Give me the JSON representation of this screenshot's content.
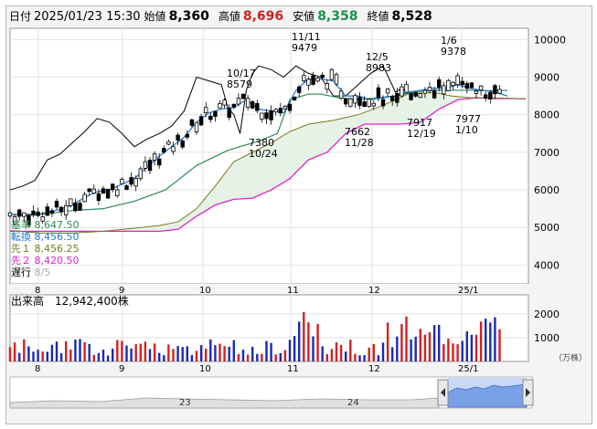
{
  "header": {
    "date_label": "日付",
    "datetime": "2025/01/23 15:30",
    "open_label": "始値",
    "open_value": "8,360",
    "high_label": "高値",
    "high_value": "8,696",
    "low_label": "安値",
    "low_value": "8,358",
    "close_label": "終値",
    "close_value": "8,528"
  },
  "colors": {
    "up": "#d42020",
    "down": "#1a2bb0",
    "high": "#d42020",
    "low": "#18924a",
    "kijun": "#2e8b57",
    "tenkan": "#1e78d8",
    "senkou1": "#7a7a20",
    "senkou2": "#e020d0",
    "chikou": "#000000",
    "cloud": "#e6f2e6"
  },
  "legend": [
    {
      "label": "基準",
      "value": "8,647.50",
      "color": "#2e8b57"
    },
    {
      "label": "転換",
      "value": "8,456.50",
      "color": "#1e78d8"
    },
    {
      "label": "先１",
      "value": "8,456.25",
      "color": "#7a7a20"
    },
    {
      "label": "先２",
      "value": "8,420.50",
      "color": "#e020d0"
    },
    {
      "label": "遅行",
      "value": "8/5",
      "color": "#000000"
    }
  ],
  "volume_label": "出来高　12,942,400株",
  "volume_unit": "（万株）",
  "price_axis": [
    "10000",
    "9000",
    "8000",
    "7000",
    "6000",
    "5000",
    "4000"
  ],
  "volume_axis": [
    "2000",
    "1000"
  ],
  "month_labels": [
    "8",
    "9",
    "10",
    "11",
    "12",
    "25/1"
  ],
  "navigator_labels": [
    "23",
    "24"
  ],
  "annotations": [
    {
      "id": "a1",
      "lines": [
        "10/17",
        "8579"
      ]
    },
    {
      "id": "a2",
      "lines": [
        "7380",
        "10/24"
      ]
    },
    {
      "id": "a3",
      "lines": [
        "11/11",
        "9479"
      ]
    },
    {
      "id": "a4",
      "lines": [
        "12/5",
        "8983"
      ]
    },
    {
      "id": "a5",
      "lines": [
        "7662",
        "11/28"
      ]
    },
    {
      "id": "a6",
      "lines": [
        "1/6",
        "9378"
      ]
    },
    {
      "id": "a7",
      "lines": [
        "7917",
        "12/19"
      ]
    },
    {
      "id": "a8",
      "lines": [
        "7977",
        "1/10"
      ]
    }
  ],
  "chart_data": {
    "type": "candlestick",
    "price_range": [
      3500,
      10300
    ],
    "volume_range": [
      0,
      2800
    ],
    "ichimoku": {
      "tenkan": [
        [
          0,
          5350
        ],
        [
          4,
          5320
        ],
        [
          8,
          5330
        ],
        [
          12,
          5400
        ],
        [
          16,
          5480
        ],
        [
          20,
          5600
        ],
        [
          24,
          5800
        ],
        [
          28,
          5950
        ],
        [
          32,
          6000
        ],
        [
          36,
          6150
        ],
        [
          40,
          6300
        ],
        [
          44,
          6600
        ],
        [
          48,
          6900
        ],
        [
          52,
          7150
        ],
        [
          56,
          7400
        ],
        [
          60,
          7800
        ],
        [
          64,
          8050
        ],
        [
          68,
          8150
        ],
        [
          72,
          8200
        ],
        [
          76,
          8400
        ],
        [
          80,
          8150
        ],
        [
          84,
          8100
        ],
        [
          88,
          8050
        ],
        [
          92,
          8650
        ],
        [
          96,
          8950
        ],
        [
          100,
          8950
        ],
        [
          104,
          8900
        ],
        [
          108,
          8500
        ],
        [
          112,
          8500
        ],
        [
          116,
          8400
        ],
        [
          120,
          8450
        ],
        [
          124,
          8500
        ],
        [
          128,
          8600
        ],
        [
          132,
          8650
        ],
        [
          136,
          8700
        ],
        [
          140,
          8700
        ],
        [
          144,
          8800
        ],
        [
          148,
          8700
        ],
        [
          152,
          8650
        ],
        [
          156,
          8600
        ],
        [
          160,
          8500
        ]
      ],
      "kijun": [
        [
          0,
          5350
        ],
        [
          10,
          5350
        ],
        [
          20,
          5450
        ],
        [
          30,
          5500
        ],
        [
          40,
          5700
        ],
        [
          50,
          6000
        ],
        [
          60,
          6650
        ],
        [
          70,
          7050
        ],
        [
          80,
          7300
        ],
        [
          86,
          7500
        ],
        [
          90,
          8400
        ],
        [
          96,
          8550
        ],
        [
          100,
          8550
        ],
        [
          106,
          8450
        ],
        [
          112,
          8400
        ],
        [
          118,
          8450
        ],
        [
          124,
          8500
        ],
        [
          130,
          8600
        ],
        [
          136,
          8650
        ],
        [
          142,
          8650
        ],
        [
          148,
          8650
        ],
        [
          154,
          8640
        ],
        [
          160,
          8647
        ]
      ],
      "senkou1": [
        [
          0,
          4920
        ],
        [
          10,
          4850
        ],
        [
          20,
          4850
        ],
        [
          30,
          4900
        ],
        [
          40,
          4980
        ],
        [
          48,
          5050
        ],
        [
          54,
          5150
        ],
        [
          60,
          5500
        ],
        [
          66,
          6100
        ],
        [
          72,
          6750
        ],
        [
          78,
          7000
        ],
        [
          84,
          7250
        ],
        [
          90,
          7550
        ],
        [
          96,
          7750
        ],
        [
          104,
          7850
        ],
        [
          112,
          8000
        ],
        [
          120,
          8250
        ],
        [
          128,
          8550
        ],
        [
          136,
          8600
        ],
        [
          142,
          8500
        ],
        [
          148,
          8450
        ],
        [
          154,
          8450
        ],
        [
          160,
          8440
        ],
        [
          166,
          8420
        ]
      ],
      "senkou2": [
        [
          0,
          4900
        ],
        [
          20,
          4900
        ],
        [
          40,
          4900
        ],
        [
          48,
          4900
        ],
        [
          54,
          4950
        ],
        [
          60,
          5300
        ],
        [
          66,
          5600
        ],
        [
          72,
          5750
        ],
        [
          78,
          5780
        ],
        [
          84,
          6000
        ],
        [
          90,
          6300
        ],
        [
          96,
          6800
        ],
        [
          102,
          7000
        ],
        [
          108,
          7500
        ],
        [
          114,
          7750
        ],
        [
          120,
          7750
        ],
        [
          126,
          7750
        ],
        [
          132,
          7800
        ],
        [
          138,
          8150
        ],
        [
          144,
          8400
        ],
        [
          150,
          8450
        ],
        [
          156,
          8430
        ],
        [
          162,
          8430
        ],
        [
          166,
          8420
        ]
      ],
      "chikou": [
        [
          0,
          6000
        ],
        [
          4,
          6100
        ],
        [
          8,
          6250
        ],
        [
          12,
          6800
        ],
        [
          16,
          6950
        ],
        [
          20,
          7250
        ],
        [
          24,
          7550
        ],
        [
          28,
          7900
        ],
        [
          32,
          7800
        ],
        [
          36,
          7500
        ],
        [
          40,
          7150
        ],
        [
          44,
          7350
        ],
        [
          48,
          7500
        ],
        [
          52,
          7700
        ],
        [
          56,
          8100
        ],
        [
          60,
          9000
        ],
        [
          64,
          8900
        ],
        [
          68,
          8800
        ],
        [
          70,
          8200
        ],
        [
          72,
          8000
        ],
        [
          74,
          7500
        ],
        [
          76,
          8650
        ],
        [
          78,
          9100
        ],
        [
          80,
          9300
        ],
        [
          84,
          9200
        ],
        [
          88,
          9000
        ],
        [
          92,
          9300
        ],
        [
          96,
          9100
        ],
        [
          100,
          9000
        ],
        [
          104,
          8500
        ],
        [
          108,
          8500
        ],
        [
          112,
          8800
        ],
        [
          116,
          9100
        ],
        [
          120,
          9300
        ],
        [
          124,
          8600
        ],
        [
          126,
          8700
        ],
        [
          128,
          8600
        ],
        [
          130,
          8550
        ]
      ]
    }
  }
}
